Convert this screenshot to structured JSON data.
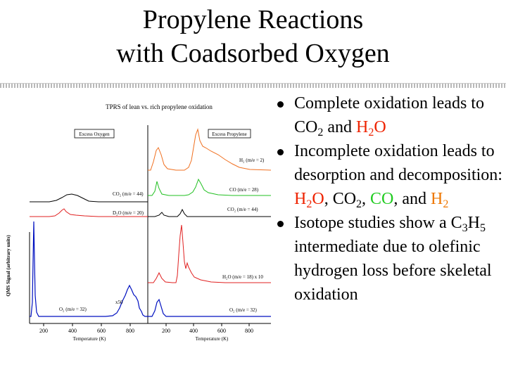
{
  "title": {
    "line1": "Propylene Reactions",
    "line2": "with Coadsorbed Oxygen"
  },
  "colors": {
    "h2_trace": "#f07020",
    "co_trace": "#22c022",
    "co2_trace": "#000000",
    "h2o_trace": "#e02020",
    "o2_trace": "#0010c0",
    "red_text": "#ee2200",
    "green_text": "#22cc22",
    "orange_text": "#ee7700"
  },
  "figure": {
    "title": "TPRS of lean vs. rich propylene oxidation",
    "ylabel": "QMS Signal (arbitrary units)",
    "left_panel": {
      "box_label": "Excess Oxygen",
      "xlabel": "Temperature (K)",
      "xticks": [
        "200",
        "400",
        "600",
        "800"
      ],
      "labels": {
        "co2": "CO₂ (m/e = 44)",
        "h2o": "D₂O (m/e = 20)",
        "o2": "O₂ (m/e = 32)",
        "x50": "x50"
      }
    },
    "right_panel": {
      "box_label": "Excess Propylene",
      "xlabel": "Temperature (K)",
      "xticks": [
        "200",
        "400",
        "600",
        "800"
      ],
      "labels": {
        "h2": "H₂ (m/e = 2)",
        "co": "CO (m/e = 28)",
        "co2": "CO₂ (m/e = 44)",
        "h2o": "H₂O (m/e = 18) x 10",
        "o2": "O₂ (m/e = 32)"
      }
    }
  },
  "bullets": [
    {
      "parts": [
        {
          "text": "Complete oxidation leads to CO"
        },
        {
          "text": "2",
          "sub": true
        },
        {
          "text": " and "
        },
        {
          "text": "H",
          "color": "red"
        },
        {
          "text": "2",
          "sub": true,
          "color": "red"
        },
        {
          "text": "O",
          "color": "red"
        }
      ]
    },
    {
      "parts": [
        {
          "text": "Incomplete oxidation leads to desorption and decomposition:  "
        },
        {
          "text": "H",
          "color": "red"
        },
        {
          "text": "2",
          "sub": true,
          "color": "red"
        },
        {
          "text": "O",
          "color": "red"
        },
        {
          "text": ", CO"
        },
        {
          "text": "2",
          "sub": true
        },
        {
          "text": ", "
        },
        {
          "text": "CO",
          "color": "green"
        },
        {
          "text": ", and "
        },
        {
          "text": "H",
          "color": "orange"
        },
        {
          "text": "2",
          "sub": true,
          "color": "orange"
        }
      ]
    },
    {
      "parts": [
        {
          "text": "Isotope studies show a C"
        },
        {
          "text": "3",
          "sub": true
        },
        {
          "text": "H"
        },
        {
          "text": "5",
          "sub": true
        },
        {
          "text": " intermediate due to olefinic hydrogen loss before skeletal oxidation"
        }
      ]
    }
  ]
}
